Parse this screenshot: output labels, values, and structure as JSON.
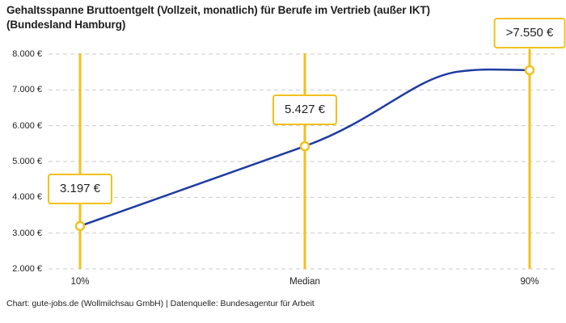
{
  "title": "Gehaltsspanne Bruttoentgelt (Vollzeit, monatlich) für Berufe im Vertrieb (außer IKT)\n(Bundesland Hamburg)",
  "footer": "Chart: gute-jobs.de (Wollmilchsau GmbH) | Datenquelle: Bundesagentur für Arbeit",
  "chart_data": {
    "type": "line",
    "title": "Gehaltsspanne Bruttoentgelt (Vollzeit, monatlich) für Berufe im Vertrieb (außer IKT) (Bundesland Hamburg)",
    "categories": [
      "10%",
      "Median",
      "90%"
    ],
    "values": [
      3197,
      5427,
      7550
    ],
    "point_labels": [
      "3.197 €",
      "5.427 €",
      ">7.550 €"
    ],
    "ylim": [
      2000,
      8000
    ],
    "y_ticks": [
      2000,
      3000,
      4000,
      5000,
      6000,
      7000,
      8000
    ],
    "y_tick_labels": [
      "2.000 €",
      "3.000 €",
      "4.000 €",
      "5.000 €",
      "6.000 €",
      "7.000 €",
      "8.000 €"
    ],
    "xlabel": "",
    "ylabel": "",
    "grid": "horizontal-dashed",
    "legend": "none",
    "marker": "open-circle",
    "colors": {
      "line": "#1E3BA1",
      "accent": "#F3C01D",
      "grid": "#CBCBCB",
      "text": "#1F1F1F"
    }
  }
}
